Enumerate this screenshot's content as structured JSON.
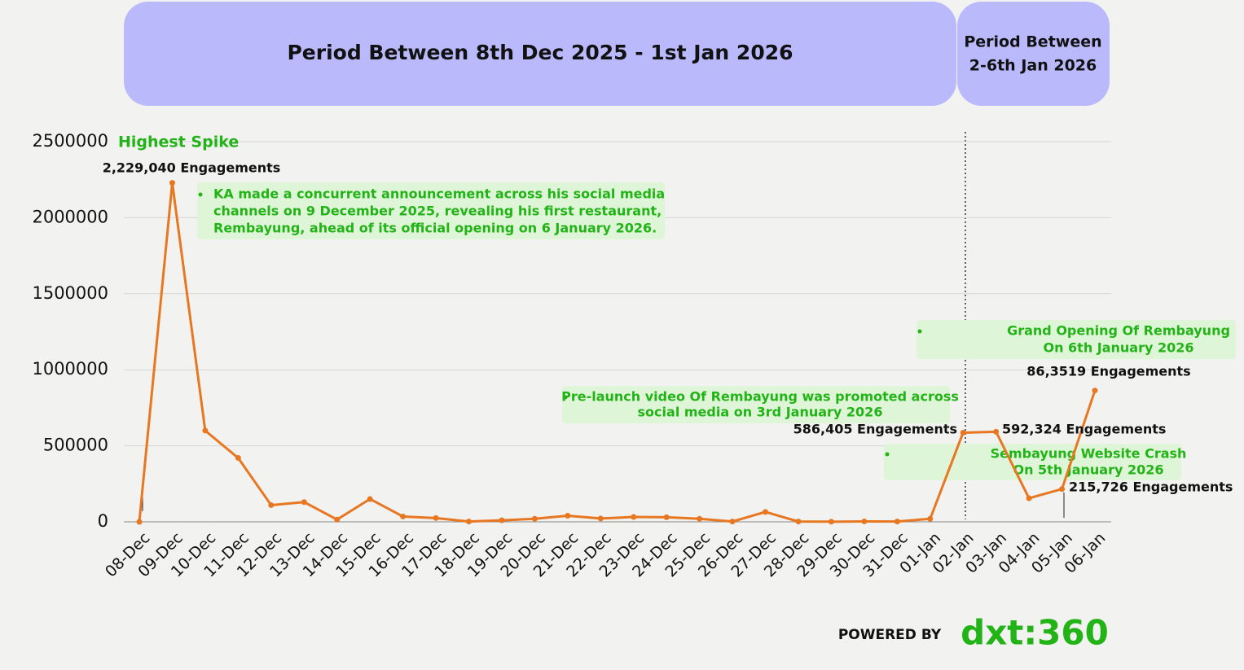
{
  "chart_data": {
    "type": "line",
    "periods": [
      [
        "Period Between 8th Dec 2025 - 1st Jan 2026"
      ],
      [
        "Period Between",
        "2-6th Jan 2026"
      ]
    ],
    "categories": [
      "08-Dec",
      "09-Dec",
      "10-Dec",
      "11-Dec",
      "12-Dec",
      "13-Dec",
      "14-Dec",
      "15-Dec",
      "16-Dec",
      "17-Dec",
      "18-Dec",
      "19-Dec",
      "20-Dec",
      "21-Dec",
      "22-Dec",
      "23-Dec",
      "24-Dec",
      "25-Dec",
      "26-Dec",
      "27-Dec",
      "28-Dec",
      "29-Dec",
      "30-Dec",
      "31-Dec",
      "01-Jan",
      "02-Jan",
      "03-Jan",
      "04-Jan",
      "05-Jan",
      "06-Jan"
    ],
    "values": [
      0,
      2229040,
      600000,
      420000,
      110000,
      130000,
      15000,
      150000,
      35000,
      25000,
      2000,
      10000,
      20000,
      40000,
      22000,
      32000,
      30000,
      20000,
      2000,
      65000,
      2000,
      1000,
      3000,
      2000,
      20000,
      586405,
      592324,
      155000,
      215726,
      863519
    ],
    "color": "#e87722",
    "ylim": [
      0,
      2500000
    ],
    "yticks": [
      0,
      500000,
      1000000,
      1500000,
      2000000,
      2500000
    ],
    "grid": true,
    "highlight": "Highest Spike",
    "engagement_labels": [
      "2,229,040 Engagements",
      "586,405  Engagements",
      "592,324 Engagements",
      "215,726 Engagements",
      "86,3519 Engagements"
    ],
    "notes": [
      [
        "KA made a concurrent announcement across his social media",
        "channels on 9 December 2025, revealing his first restaurant,",
        "Rembayung, ahead of its official opening on 6 January 2026."
      ],
      [
        "Pre-launch video Of Rembayung was promoted across",
        "social media on 3rd January 2026"
      ],
      [
        "Grand Opening Of Rembayung",
        "On 6th January 2026"
      ],
      [
        "Sembayung Website Crash",
        "On 5th January 2026"
      ]
    ]
  },
  "footer": {
    "powered_by": "POWERED BY",
    "logo": "dxt:360"
  }
}
